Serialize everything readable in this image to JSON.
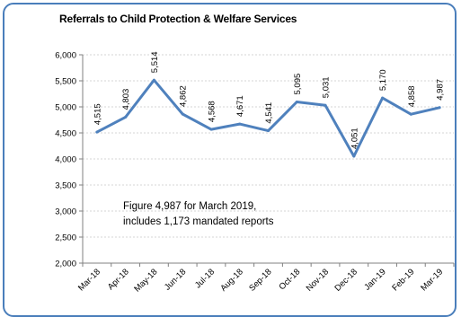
{
  "chart_data": {
    "type": "line",
    "title": "Referrals to Child Protection & Welfare Services",
    "categories": [
      "Mar-18",
      "Apr-18",
      "May-18",
      "Jun-18",
      "Jul-18",
      "Aug-18",
      "Sep-18",
      "Oct-18",
      "Nov-18",
      "Dec-18",
      "Jan-19",
      "Feb-19",
      "Mar-19"
    ],
    "values": [
      4515,
      4803,
      5514,
      4862,
      4568,
      4671,
      4541,
      5095,
      5031,
      4051,
      5170,
      4858,
      4987
    ],
    "data_labels": [
      "4,515",
      "4,803",
      "5,514",
      "4,862",
      "4,568",
      "4,671",
      "4,541",
      "5,095",
      "5,031",
      "4,051",
      "5,170",
      "4,858",
      "4,987"
    ],
    "ylim": [
      2000,
      6000
    ],
    "yticks": [
      "2,000",
      "2,500",
      "3,000",
      "3,500",
      "4,000",
      "4,500",
      "5,000",
      "5,500",
      "6,000"
    ],
    "xlabel": "",
    "ylabel": "",
    "grid": true,
    "line_color": "#4f81bd",
    "annotation": [
      "Figure 4,987 for March 2019,",
      "includes 1,173 mandated reports"
    ]
  }
}
